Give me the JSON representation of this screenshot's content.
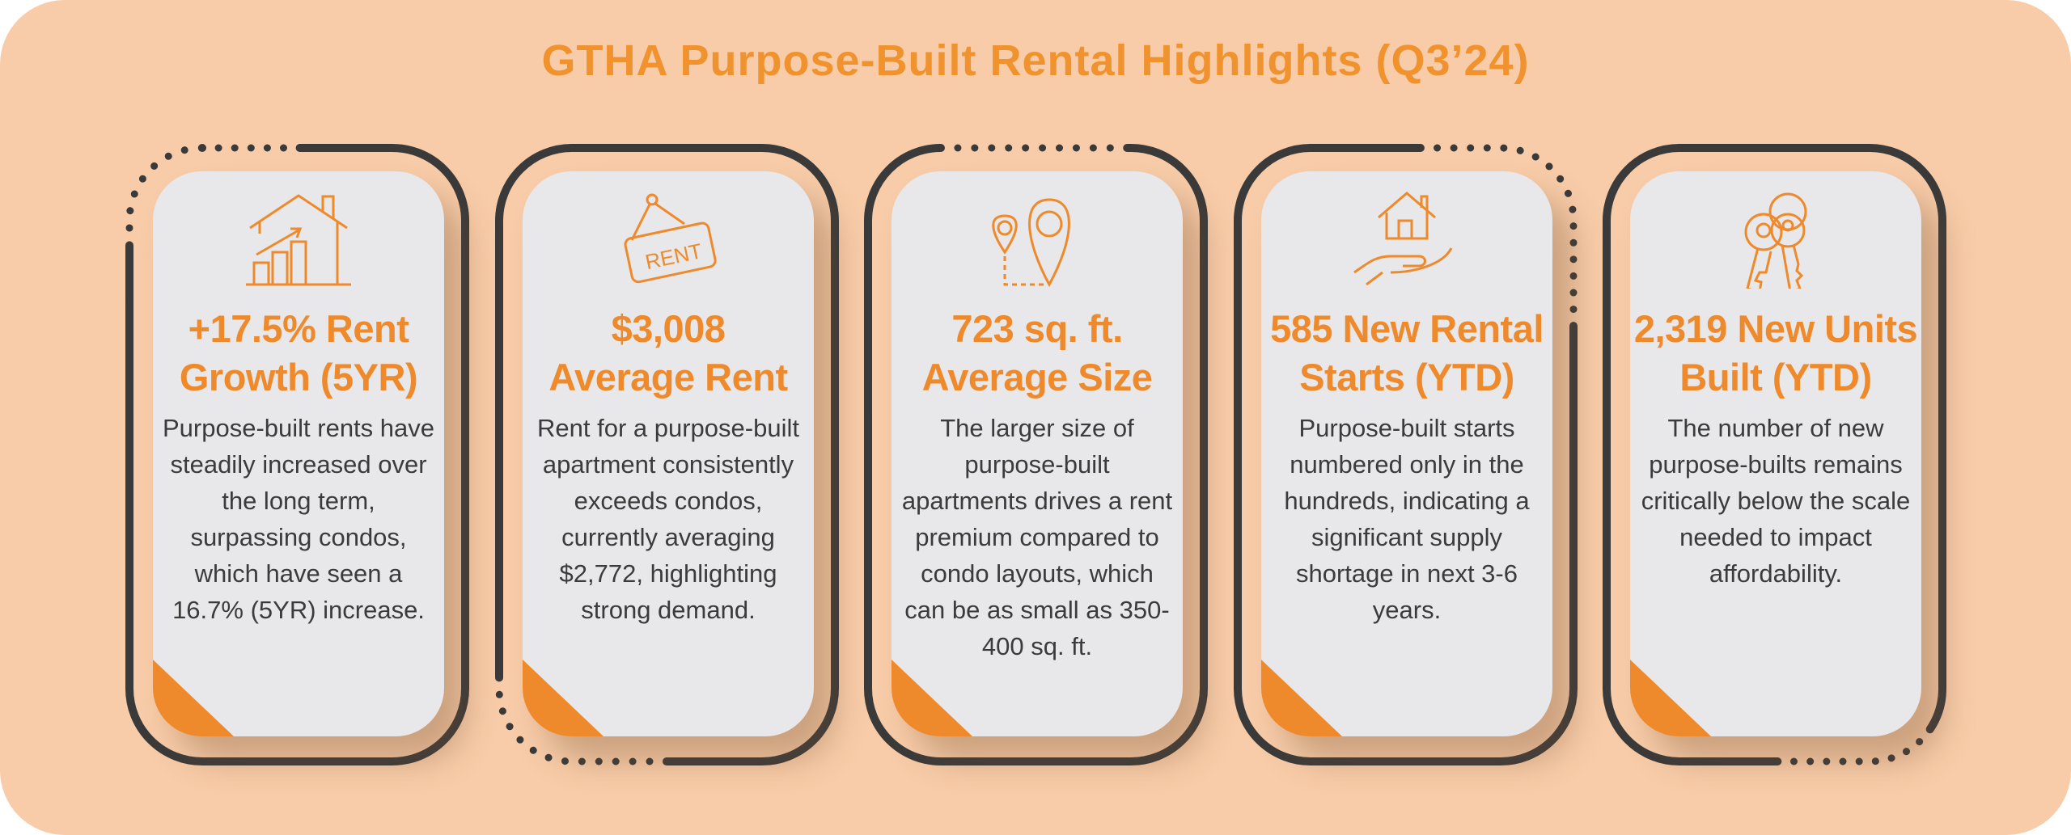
{
  "title": "GTHA Purpose-Built Rental Highlights (Q3’24)",
  "colors": {
    "accent": "#ee8a2b",
    "background": "#f8cca8",
    "card": "#e8e7e9",
    "frame": "#3a3a3a",
    "text": "#3b3b3b"
  },
  "cards": [
    {
      "icon": "house-growth-chart-icon",
      "headline_1": "+17.5% Rent",
      "headline_2": "Growth (5YR)",
      "body": "Purpose-built rents have steadily increased over the long term, surpassing condos, which have seen a 16.7% (5YR) increase."
    },
    {
      "icon": "rent-sign-icon",
      "icon_text": "RENT",
      "headline_1": "$3,008",
      "headline_2": "Average Rent",
      "body": "Rent for a purpose-built apartment consistently exceeds condos, currently averaging $2,772, highlighting strong demand."
    },
    {
      "icon": "location-pins-icon",
      "headline_1": "723 sq. ft.",
      "headline_2": "Average Size",
      "body": "The larger size of purpose-built apartments drives a rent premium compared to condo layouts, which can be as small as 350-400 sq. ft."
    },
    {
      "icon": "house-in-hand-icon",
      "headline_1": "585 New Rental",
      "headline_2": "Starts (YTD)",
      "body": "Purpose-built starts numbered only in the hundreds, indicating a significant supply shortage in next 3-6 years."
    },
    {
      "icon": "keys-icon",
      "headline_1": "2,319 New Units",
      "headline_2": "Built (YTD)",
      "body": "The number of new purpose-builts remains critically below the scale needed to impact affordability."
    }
  ]
}
